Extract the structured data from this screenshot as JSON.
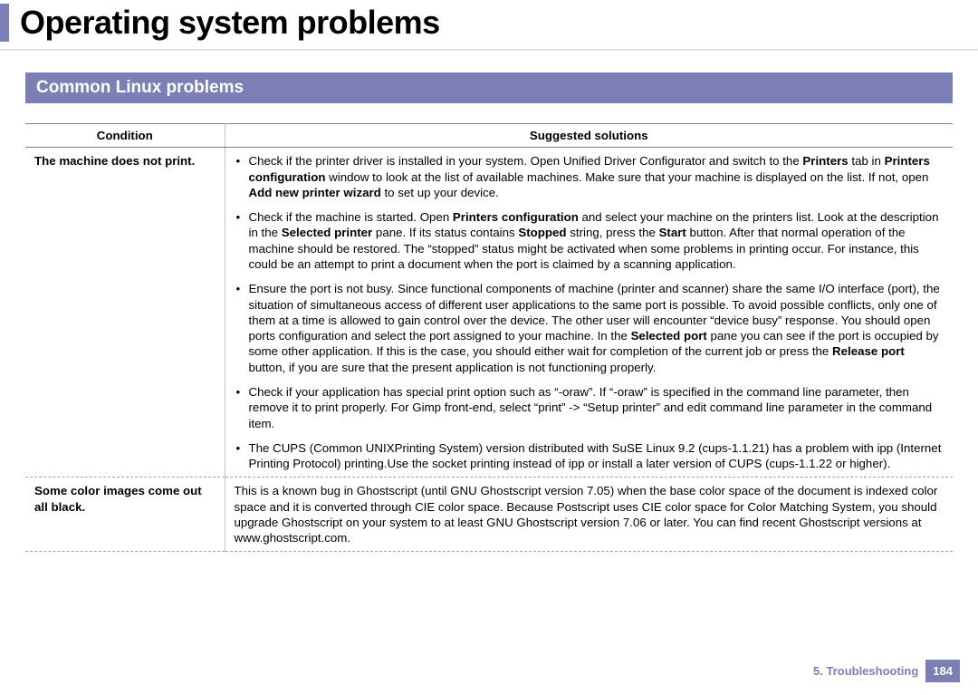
{
  "page": {
    "title": "Operating system problems",
    "accent_color": "#7b7fb5"
  },
  "section": {
    "heading": "Common Linux problems"
  },
  "table": {
    "headers": {
      "condition": "Condition",
      "solution": "Suggested solutions"
    },
    "rows": [
      {
        "condition": "The machine does not print.",
        "bullets": [
          {
            "pre": "Check if the printer driver is installed in your system. Open Unified Driver Configurator and switch to the ",
            "b1": "Printers",
            "mid1": " tab in ",
            "b2": "Printers configuration",
            "mid2": " window to look at the list of available machines. Make sure that your machine is displayed on the list. If not, open ",
            "b3": "Add new printer wizard",
            "post": " to set up your device."
          },
          {
            "pre": "Check if the machine is started. Open ",
            "b1": "Printers configuration",
            "mid1": " and select your machine on the printers list. Look at the description in the ",
            "b2": "Selected printer",
            "mid2": " pane. If its status contains ",
            "b3": "Stopped",
            "mid3": " string, press the ",
            "b4": "Start",
            "post": " button. After that normal operation of the machine should be restored. The “stopped” status might be activated when some problems in printing occur. For instance, this could be an attempt to print a document when the port is claimed by a scanning application."
          },
          {
            "pre": "Ensure the port is not busy. Since functional components of machine (printer and scanner) share the same I/O interface (port), the situation of simultaneous access of different user applications to the same port is possible. To avoid possible conflicts, only one of them at a time is allowed to gain control over the device. The other user will encounter “device busy” response. You should open ports configuration and select the port assigned to your machine. In the ",
            "b1": "Selected port",
            "mid1": " pane you can see if the port is occupied by some other application. If this is the case, you should either wait for completion of the current job or press the ",
            "b2": "Release port",
            "post": " button, if you are sure that the present application is not functioning properly."
          },
          {
            "pre": "Check if your application has special print option such as “-oraw”. If “-oraw” is specified in the command line parameter, then remove it to print properly. For Gimp front-end, select “print” -> “Setup printer” and edit command line parameter in the command item."
          },
          {
            "pre": "The CUPS (Common UNIXPrinting System) version distributed with SuSE Linux 9.2 (cups-1.1.21) has a problem with ipp (Internet Printing Protocol) printing.Use the socket printing instead of ipp or install a later version of CUPS (cups-1.1.22 or higher)."
          }
        ]
      },
      {
        "condition": "Some color images come out all black.",
        "text": "This is a known bug in Ghostscript (until GNU Ghostscript version 7.05) when the base color space of the document is indexed color space and it is converted through CIE color space. Because Postscript uses CIE color space for Color Matching System, you should upgrade Ghostscript on your system to at least GNU Ghostscript version 7.06 or later. You can find recent Ghostscript versions at www.ghostscript.com."
      }
    ]
  },
  "footer": {
    "chapter": "5.  Troubleshooting",
    "page_number": "184"
  }
}
